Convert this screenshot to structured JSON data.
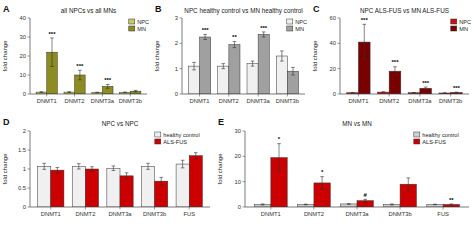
{
  "chart_data": [
    {
      "type": "bar",
      "panel_label": "A",
      "title": "all NPCs vs all MNs",
      "ylabel": "fold change",
      "categories": [
        "DNMT1",
        "DNMT2",
        "DNMT3a",
        "DNMT3b"
      ],
      "series": [
        {
          "name": "NPC",
          "color": "#c8c864",
          "values": [
            1.0,
            1.0,
            0.8,
            0.9
          ],
          "errors": [
            0.2,
            0.2,
            0.15,
            0.15
          ]
        },
        {
          "name": "MN",
          "color": "#8c8c20",
          "values": [
            22.0,
            10.0,
            4.0,
            1.5
          ],
          "errors": [
            7.5,
            2.5,
            1.0,
            0.4
          ],
          "significance": [
            "***",
            "***",
            "***",
            null
          ]
        }
      ],
      "ylim": [
        0,
        40
      ],
      "yticks": [
        0,
        10,
        20,
        30,
        40
      ],
      "legend": "upper right"
    },
    {
      "type": "bar",
      "panel_label": "B",
      "title": "NPC healthy control vs MN healthy control",
      "ylabel": "fold change",
      "categories": [
        "DNMT1",
        "DNMT2",
        "DNMT3a",
        "DNMT3b"
      ],
      "series": [
        {
          "name": "NPC",
          "color": "#f0f0f0",
          "values": [
            1.1,
            1.1,
            1.2,
            1.5
          ],
          "errors": [
            0.15,
            0.1,
            0.1,
            0.2
          ]
        },
        {
          "name": "MN",
          "color": "#a0a0a0",
          "values": [
            2.25,
            1.95,
            2.35,
            0.9
          ],
          "errors": [
            0.1,
            0.12,
            0.1,
            0.15
          ],
          "significance": [
            "***",
            "**",
            "***",
            null
          ]
        }
      ],
      "ylim": [
        0,
        3
      ],
      "yticks": [
        0,
        1,
        2,
        3
      ],
      "legend": "upper right"
    },
    {
      "type": "bar",
      "panel_label": "C",
      "title": "NPC ALS-FUS vs MN ALS-FUS",
      "ylabel": "fold change",
      "categories": [
        "DNMT1",
        "DNMT2",
        "DNMT3a",
        "DNMT3b"
      ],
      "series": [
        {
          "name": "NPC",
          "color": "#cc1111",
          "values": [
            1.0,
            1.5,
            1.0,
            0.8
          ],
          "errors": [
            0.2,
            0.3,
            0.15,
            0.1
          ]
        },
        {
          "name": "MN",
          "color": "#7a0000",
          "values": [
            41.0,
            18.0,
            4.5,
            1.2
          ],
          "errors": [
            14.0,
            3.5,
            1.0,
            0.3
          ],
          "significance": [
            "***",
            "***",
            "***",
            "***"
          ]
        }
      ],
      "ylim": [
        0,
        60
      ],
      "yticks": [
        0,
        20,
        40,
        60
      ],
      "legend": "upper right"
    },
    {
      "type": "bar",
      "panel_label": "D",
      "title": "NPC vs NPC",
      "ylabel": "fold change",
      "categories": [
        "DNMT1",
        "DNMT2",
        "DNMT3a",
        "DNMT3b",
        "FUS"
      ],
      "series": [
        {
          "name": "healthy control",
          "color": "#f0f0f0",
          "values": [
            1.07,
            1.07,
            1.02,
            1.07,
            1.13
          ],
          "errors": [
            0.08,
            0.07,
            0.06,
            0.08,
            0.1
          ]
        },
        {
          "name": "ALS-FUS",
          "color": "#cc0000",
          "values": [
            0.97,
            1.0,
            0.82,
            0.68,
            1.35
          ],
          "errors": [
            0.07,
            0.06,
            0.08,
            0.1,
            0.08
          ]
        }
      ],
      "ylim": [
        0,
        2
      ],
      "yticks": [
        0,
        0.5,
        1,
        1.5,
        2
      ],
      "legend": "upper right"
    },
    {
      "type": "bar",
      "panel_label": "E",
      "title": "MN vs MN",
      "ylabel": "fold change",
      "categories": [
        "DNMT1",
        "DNMT2",
        "DNMT3a",
        "DNMT3b",
        "FUS"
      ],
      "series": [
        {
          "name": "healthy control",
          "color": "#d0d0d0",
          "values": [
            1.0,
            1.0,
            1.2,
            1.0,
            1.0
          ],
          "errors": [
            0.2,
            0.15,
            0.15,
            0.2,
            0.1
          ]
        },
        {
          "name": "ALS-FUS",
          "color": "#cc0000",
          "values": [
            19.5,
            9.5,
            2.5,
            9.0,
            1.0
          ],
          "errors": [
            5.5,
            2.5,
            0.5,
            2.5,
            0.2
          ],
          "significance": [
            "*",
            "*",
            "#",
            null,
            "**"
          ]
        }
      ],
      "ylim": [
        0,
        30
      ],
      "yticks": [
        0,
        10,
        20,
        30
      ],
      "legend": "upper right"
    }
  ]
}
